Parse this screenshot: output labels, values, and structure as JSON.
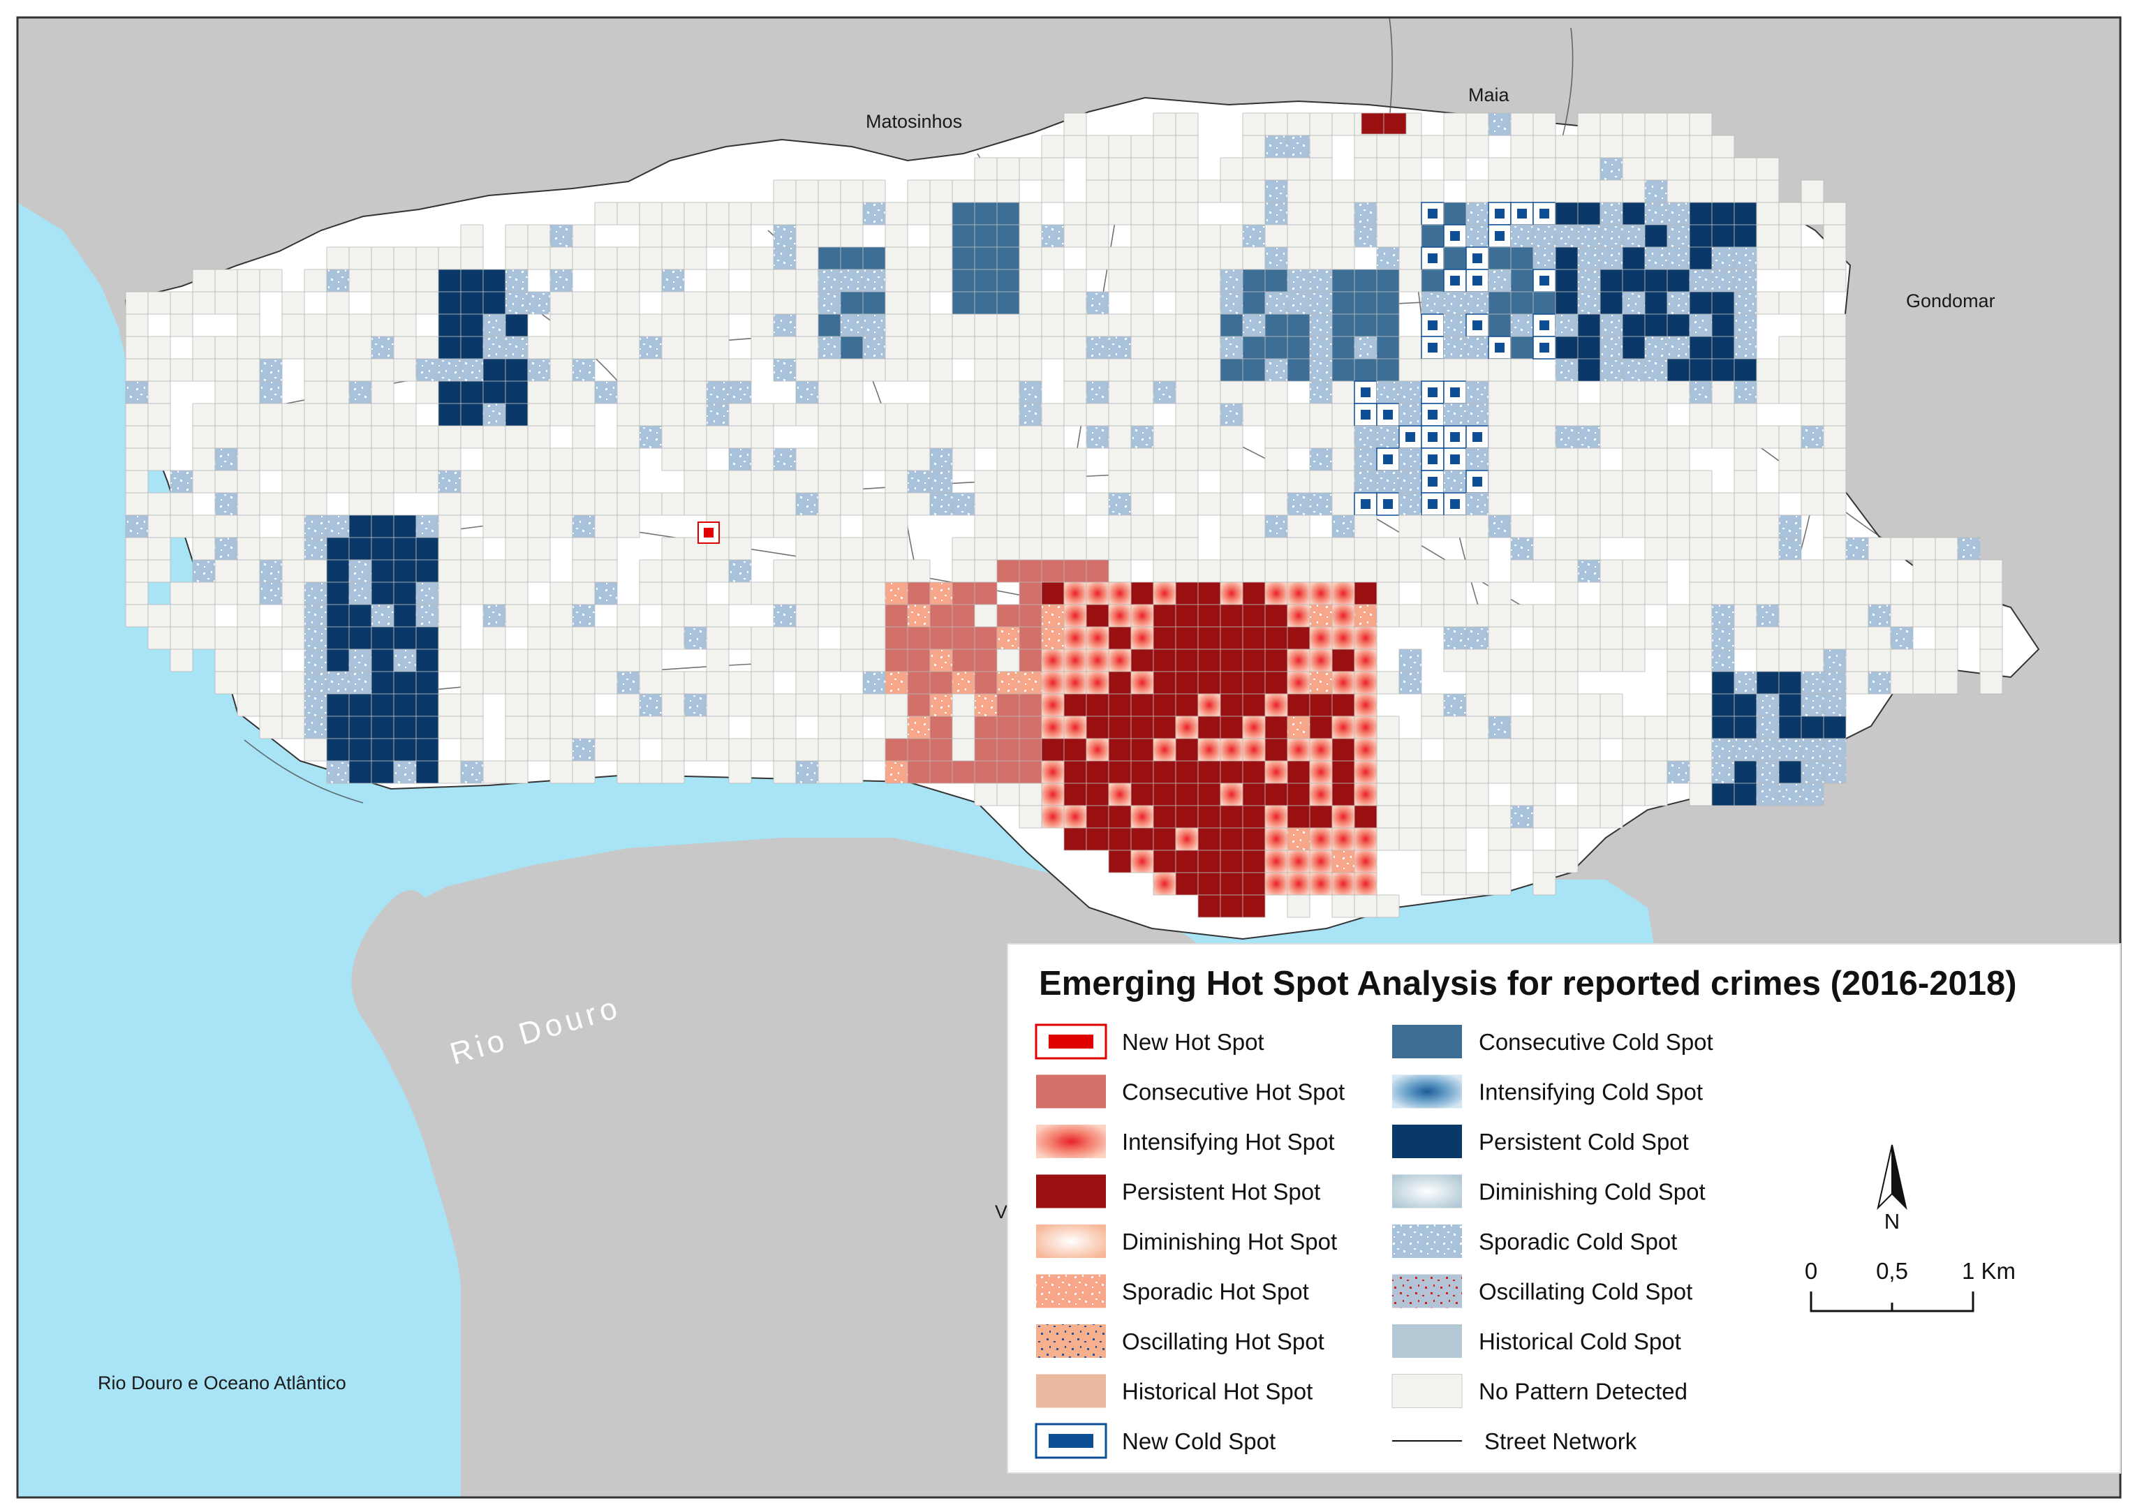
{
  "map": {
    "place_labels": {
      "matosinhos": "Matosinhos",
      "maia": "Maia",
      "gondomar": "Gondomar",
      "rio_douro": "Rio Douro",
      "ocean": "Rio Douro e Oceano Atlântico",
      "v": "V"
    },
    "colors": {
      "land": "#c8c8c8",
      "water": "#a8e4f5",
      "no_pattern": "#f2f2ef",
      "consecutive_hot": "#d4706a",
      "persistent_hot": "#9a0f0f",
      "intensifying_hot": "#f08070",
      "new_hot": "#e00000",
      "sporadic_hot": "#f7a68a",
      "diminishing_hot": "#fde1d2",
      "historical_hot": "#eab89e",
      "persistent_cold": "#0a3868",
      "consecutive_cold": "#3d6f96",
      "sporadic_cold": "#a9c2dc",
      "new_cold": "#0d4f96",
      "historical_cold": "#b3c7d4"
    }
  },
  "legend": {
    "title": "Emerging Hot Spot Analysis for reported crimes (2016-2018)",
    "left": [
      {
        "label": "New Hot Spot",
        "icon": "new-hot-spot"
      },
      {
        "label": "Consecutive Hot Spot",
        "icon": "consecutive-hot-spot"
      },
      {
        "label": "Intensifying Hot Spot",
        "icon": "intensifying-hot-spot"
      },
      {
        "label": "Persistent Hot Spot",
        "icon": "persistent-hot-spot"
      },
      {
        "label": "Diminishing Hot Spot",
        "icon": "diminishing-hot-spot"
      },
      {
        "label": "Sporadic Hot Spot",
        "icon": "sporadic-hot-spot"
      },
      {
        "label": "Oscillating Hot Spot",
        "icon": "oscillating-hot-spot"
      },
      {
        "label": "Historical Hot Spot",
        "icon": "historical-hot-spot"
      },
      {
        "label": "New Cold Spot",
        "icon": "new-cold-spot"
      }
    ],
    "right": [
      {
        "label": "Consecutive Cold Spot",
        "icon": "consecutive-cold-spot"
      },
      {
        "label": "Intensifying Cold Spot",
        "icon": "intensifying-cold-spot"
      },
      {
        "label": "Persistent Cold Spot",
        "icon": "persistent-cold-spot"
      },
      {
        "label": "Diminishing Cold Spot",
        "icon": "diminishing-cold-spot"
      },
      {
        "label": "Sporadic Cold Spot",
        "icon": "sporadic-cold-spot"
      },
      {
        "label": "Oscillating Cold Spot",
        "icon": "oscillating-cold-spot"
      },
      {
        "label": "Historical Cold Spot",
        "icon": "historical-cold-spot"
      },
      {
        "label": "No Pattern Detected",
        "icon": "no-pattern-detected"
      },
      {
        "label": "Street Network",
        "icon": "street-network-line"
      }
    ]
  },
  "north_arrow": {
    "label": "N"
  },
  "scale_bar": {
    "ticks": [
      "0",
      "0,5",
      "1 Km"
    ]
  }
}
